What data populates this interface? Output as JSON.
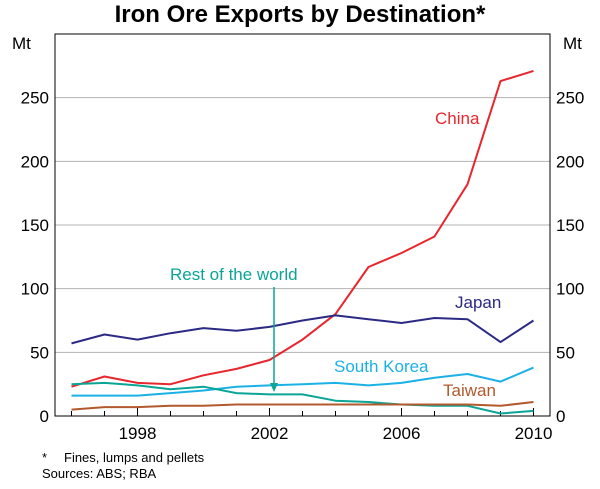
{
  "chart_data": {
    "type": "line",
    "title": "Iron Ore Exports by Destination*",
    "unit_left": "Mt",
    "unit_right": "Mt",
    "ylim": [
      0,
      300
    ],
    "yticks": [
      0,
      50,
      100,
      150,
      200,
      250
    ],
    "xlim": [
      1995.5,
      2010.5
    ],
    "xticks": [
      1998,
      2002,
      2006,
      2010
    ],
    "x": [
      1996,
      1997,
      1998,
      1999,
      2000,
      2001,
      2002,
      2003,
      2004,
      2005,
      2006,
      2007,
      2008,
      2009,
      2010
    ],
    "series": [
      {
        "name": "China",
        "color": "#e8262d",
        "values": [
          23,
          31,
          26,
          25,
          32,
          37,
          44,
          60,
          80,
          117,
          128,
          141,
          182,
          263,
          271
        ]
      },
      {
        "name": "Japan",
        "color": "#2b2a85",
        "values": [
          57,
          64,
          60,
          65,
          69,
          67,
          70,
          75,
          79,
          76,
          73,
          77,
          76,
          58,
          75
        ]
      },
      {
        "name": "South Korea",
        "color": "#1bb1e6",
        "values": [
          16,
          16,
          16,
          18,
          20,
          23,
          24,
          25,
          26,
          24,
          26,
          30,
          33,
          27,
          38
        ]
      },
      {
        "name": "Rest of the world",
        "color": "#0aa597",
        "values": [
          25,
          26,
          24,
          21,
          23,
          18,
          17,
          17,
          12,
          11,
          9,
          8,
          8,
          2,
          4
        ]
      },
      {
        "name": "Taiwan",
        "color": "#b2592d",
        "values": [
          5,
          7,
          7,
          8,
          8,
          9,
          9,
          9,
          9,
          9,
          9,
          9,
          9,
          8,
          11
        ]
      }
    ],
    "annotations": {
      "china": "China",
      "japan": "Japan",
      "south_korea": "South Korea",
      "taiwan": "Taiwan",
      "rest_of_world": "Rest of the world"
    }
  },
  "footnote": {
    "marker": "*",
    "text": "Fines, lumps and pellets",
    "sources": "Sources: ABS; RBA"
  }
}
